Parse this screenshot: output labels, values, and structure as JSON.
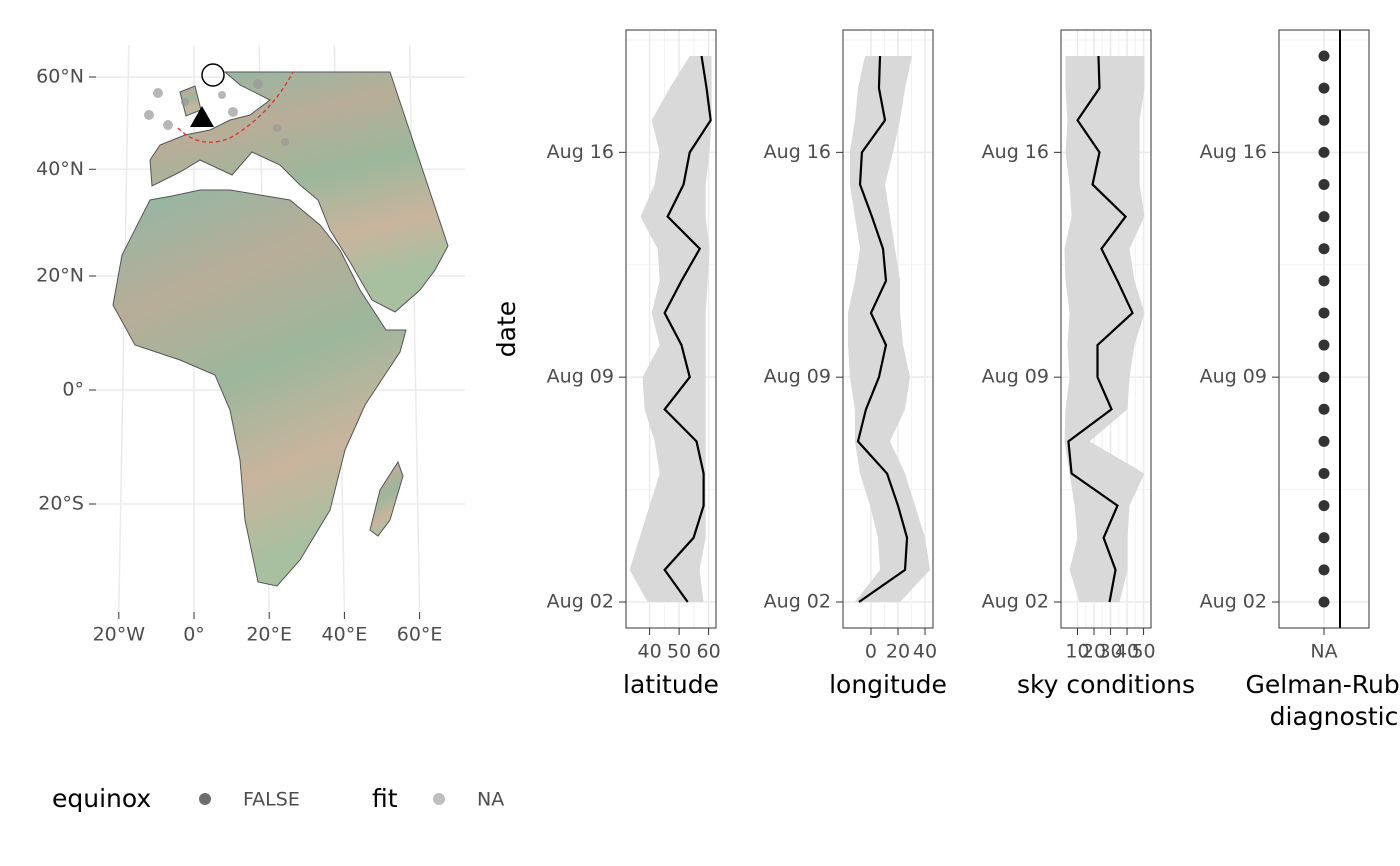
{
  "chart_data": [
    {
      "type": "map",
      "xticks": [
        {
          "value": -20,
          "label": "20°W"
        },
        {
          "value": 0,
          "label": "0°"
        },
        {
          "value": 20,
          "label": "20°E"
        },
        {
          "value": 40,
          "label": "40°E"
        },
        {
          "value": 60,
          "label": "60°E"
        }
      ],
      "yticks": [
        {
          "value": 60,
          "label": "60°N"
        },
        {
          "value": 40,
          "label": "40°N"
        },
        {
          "value": 20,
          "label": "20°N"
        },
        {
          "value": 0,
          "label": "0°"
        },
        {
          "value": -20,
          "label": "20°S"
        }
      ],
      "legend": [
        {
          "title": "equinox",
          "label": "FALSE",
          "color": "#555555"
        },
        {
          "title": "fit",
          "label": "NA",
          "color": "#b3b3b3"
        }
      ]
    },
    {
      "type": "line",
      "ylabel": "date",
      "xlabel": "latitude",
      "dates": [
        "Aug 02",
        null,
        null,
        null,
        null,
        null,
        null,
        "Aug 09",
        null,
        null,
        null,
        null,
        null,
        null,
        "Aug 16",
        null,
        null,
        null
      ],
      "xlim": [
        32,
        62.5
      ],
      "xticks": [
        40,
        50,
        60
      ],
      "color": "#000000",
      "band_color": "#d9d9d9",
      "values": [
        52.9,
        45.1,
        54.9,
        58.3,
        58.3,
        55.9,
        45.1,
        53.6,
        50.8,
        45.1,
        50.8,
        57.0,
        46.1,
        51.5,
        53.6,
        60.7,
        59.3,
        57.6
      ],
      "lower": [
        39.3,
        33.2,
        36.6,
        40,
        43.4,
        41.7,
        38.3,
        37.6,
        43.4,
        40.7,
        43.4,
        42.7,
        36.9,
        41.7,
        43.4,
        40.7,
        46.8,
        53.6
      ],
      "upper": [
        58.3,
        56.9,
        59.0,
        59.0,
        59.0,
        59.0,
        59.0,
        59.0,
        59.0,
        59.0,
        59.7,
        60.3,
        59.0,
        59.0,
        60.3,
        61.0,
        61.0,
        61.0
      ]
    },
    {
      "type": "line",
      "xlabel": "longitude",
      "dates": [
        "Aug 02",
        null,
        null,
        null,
        null,
        null,
        null,
        "Aug 09",
        null,
        null,
        null,
        null,
        null,
        null,
        "Aug 16",
        null,
        null,
        null
      ],
      "xlim": [
        -20.7,
        45.9
      ],
      "xticks": [
        0,
        20,
        40
      ],
      "color": "#000000",
      "band_color": "#d9d9d9",
      "values": [
        -8.9,
        25.2,
        26.7,
        20,
        11.9,
        -9.6,
        -3.7,
        5.9,
        11.1,
        0,
        11.1,
        8.9,
        0.7,
        -8.1,
        -6.7,
        10.4,
        5.9,
        6.7
      ],
      "lower": [
        -11.9,
        6.7,
        5.2,
        -0.7,
        -8.1,
        -11.9,
        -11.9,
        -15.6,
        -17,
        -17,
        -11.9,
        -8.1,
        -11.9,
        -15.6,
        -15.6,
        -11.9,
        -9.6,
        -4.4
      ],
      "upper": [
        21.5,
        43.7,
        40,
        32.6,
        25.2,
        14.1,
        25.2,
        28.9,
        23.7,
        21.5,
        21.5,
        17.8,
        14.1,
        10.4,
        16.3,
        21.5,
        25.2,
        30.4
      ]
    },
    {
      "type": "line",
      "xlabel": "sky conditions",
      "dates": [
        "Aug 02",
        null,
        null,
        null,
        null,
        null,
        null,
        "Aug 09",
        null,
        null,
        null,
        null,
        null,
        null,
        "Aug 16",
        null,
        null,
        null
      ],
      "xlim": [
        0,
        54.5
      ],
      "xticks": [
        10,
        20,
        30,
        40,
        50
      ],
      "color": "#000000",
      "band_color": "#d9d9d9",
      "values": [
        29.4,
        33,
        25.8,
        34.2,
        6.4,
        4.5,
        30.6,
        22.1,
        22.1,
        43.3,
        34.2,
        24.5,
        39.1,
        19.1,
        23.3,
        10,
        23.3,
        22.7
      ],
      "lower": [
        11.2,
        5.2,
        10,
        8.2,
        5.2,
        2.1,
        2.7,
        5.2,
        3.9,
        5.2,
        2.7,
        2.1,
        6.4,
        5.2,
        2.7,
        3.9,
        2.7,
        2.7
      ],
      "upper": [
        35.5,
        40.3,
        40.3,
        41.5,
        50.6,
        17.3,
        40.3,
        41.5,
        44.5,
        50.6,
        44.5,
        41.5,
        50.6,
        47.6,
        47.6,
        47.6,
        50.6,
        50.6
      ]
    },
    {
      "type": "dot",
      "xlabel": [
        "Gelman-Rubin",
        "diagnostic"
      ],
      "dates": [
        "Aug 02",
        null,
        null,
        null,
        null,
        null,
        null,
        "Aug 09",
        null,
        null,
        null,
        null,
        null,
        null,
        "Aug 16",
        null,
        null,
        null
      ],
      "xcategories": [
        "NA"
      ],
      "color": "#333333",
      "values": [
        null,
        null,
        null,
        null,
        null,
        null,
        null,
        null,
        null,
        null,
        null,
        null,
        null,
        null,
        null,
        null,
        null,
        null
      ]
    }
  ]
}
